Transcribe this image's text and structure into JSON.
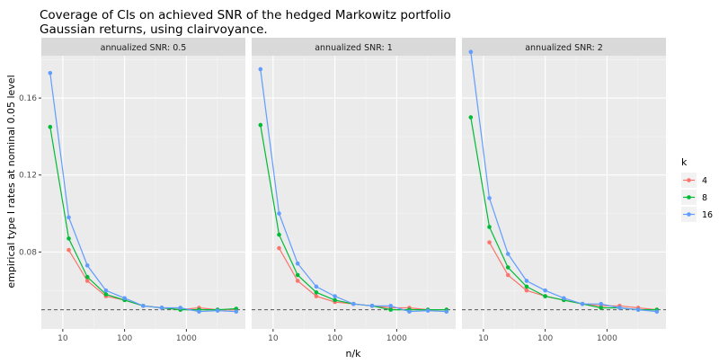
{
  "chart_data": {
    "type": "line",
    "title_lines": [
      "Coverage of CIs on achieved SNR of the hedged Markowitz portfolio",
      "Gaussian returns, using clairvoyance."
    ],
    "xlabel": "n/k",
    "ylabel": "empirical type I rates at nominal 0.05 level",
    "x_scale": "log10",
    "xlim": [
      4.5,
      9000
    ],
    "ylim": [
      0.04,
      0.182
    ],
    "x_ticks": [
      10,
      100,
      1000
    ],
    "x_tick_labels": [
      "10",
      "100",
      "1000"
    ],
    "y_ticks": [
      0.08,
      0.12,
      0.16
    ],
    "y_tick_labels": [
      "0.08",
      "0.12",
      "0.16"
    ],
    "reference_line": 0.05,
    "legend": {
      "title": "k",
      "entries": [
        {
          "label": "4",
          "color": "#F8766D"
        },
        {
          "label": "8",
          "color": "#00BA38"
        },
        {
          "label": "16",
          "color": "#619CFF"
        }
      ]
    },
    "panels": [
      {
        "strip": "annualized SNR: 0.5",
        "series": [
          {
            "name": "4",
            "color": "#F8766D",
            "x": [
              12.5,
              25,
              50,
              100,
              200,
              400,
              800,
              1600,
              3200,
              6400
            ],
            "y": [
              0.081,
              0.065,
              0.057,
              0.055,
              0.052,
              0.051,
              0.05,
              0.051,
              0.05,
              0.05
            ]
          },
          {
            "name": "8",
            "color": "#00BA38",
            "x": [
              6.25,
              12.5,
              25,
              50,
              100,
              200,
              400,
              800,
              1600,
              3200,
              6400
            ],
            "y": [
              0.145,
              0.087,
              0.067,
              0.058,
              0.055,
              0.052,
              0.051,
              0.05,
              0.05,
              0.05,
              0.0505
            ]
          },
          {
            "name": "16",
            "color": "#619CFF",
            "x": [
              6.25,
              12.5,
              25,
              50,
              100,
              200,
              400,
              800,
              1600,
              3200,
              6400
            ],
            "y": [
              0.173,
              0.098,
              0.073,
              0.06,
              0.056,
              0.052,
              0.051,
              0.051,
              0.049,
              0.0495,
              0.049
            ]
          }
        ]
      },
      {
        "strip": "annualized SNR: 1",
        "series": [
          {
            "name": "4",
            "color": "#F8766D",
            "x": [
              12.5,
              25,
              50,
              100,
              200,
              400,
              800,
              1600,
              3200,
              6400
            ],
            "y": [
              0.082,
              0.065,
              0.057,
              0.054,
              0.053,
              0.052,
              0.051,
              0.051,
              0.05,
              0.05
            ]
          },
          {
            "name": "8",
            "color": "#00BA38",
            "x": [
              6.25,
              12.5,
              25,
              50,
              100,
              200,
              400,
              800,
              1600,
              3200,
              6400
            ],
            "y": [
              0.146,
              0.089,
              0.068,
              0.059,
              0.055,
              0.053,
              0.052,
              0.05,
              0.05,
              0.05,
              0.05
            ]
          },
          {
            "name": "16",
            "color": "#619CFF",
            "x": [
              6.25,
              12.5,
              25,
              50,
              100,
              200,
              400,
              800,
              1600,
              3200,
              6400
            ],
            "y": [
              0.175,
              0.1,
              0.074,
              0.062,
              0.057,
              0.053,
              0.052,
              0.052,
              0.049,
              0.0495,
              0.049
            ]
          }
        ]
      },
      {
        "strip": "annualized SNR: 2",
        "series": [
          {
            "name": "4",
            "color": "#F8766D",
            "x": [
              12.5,
              25,
              50,
              100,
              200,
              400,
              800,
              1600,
              3200,
              6400
            ],
            "y": [
              0.085,
              0.068,
              0.06,
              0.057,
              0.055,
              0.053,
              0.052,
              0.052,
              0.051,
              0.05
            ]
          },
          {
            "name": "8",
            "color": "#00BA38",
            "x": [
              6.25,
              12.5,
              25,
              50,
              100,
              200,
              400,
              800,
              1600,
              3200,
              6400
            ],
            "y": [
              0.15,
              0.093,
              0.072,
              0.062,
              0.057,
              0.055,
              0.053,
              0.051,
              0.051,
              0.05,
              0.05
            ]
          },
          {
            "name": "16",
            "color": "#619CFF",
            "x": [
              6.25,
              12.5,
              25,
              50,
              100,
              200,
              400,
              800,
              1600,
              3200,
              6400
            ],
            "y": [
              0.184,
              0.108,
              0.079,
              0.065,
              0.06,
              0.056,
              0.053,
              0.053,
              0.051,
              0.05,
              0.049
            ]
          }
        ]
      }
    ]
  }
}
